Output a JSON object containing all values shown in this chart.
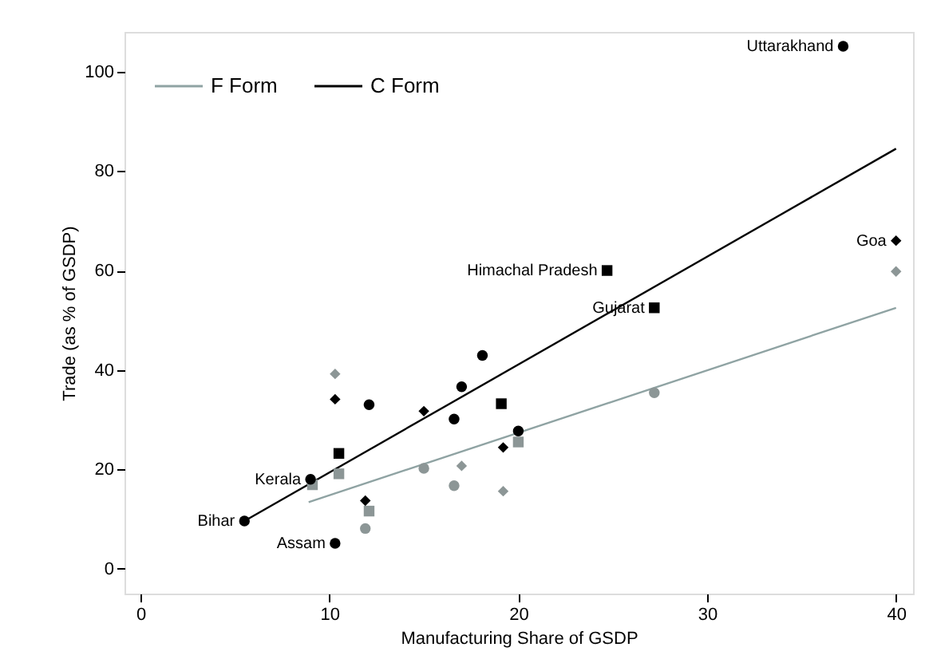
{
  "chart_data": {
    "type": "scatter",
    "xlabel": "Manufacturing Share of GSDP",
    "ylabel": "Trade (as % of GSDP)",
    "xlim": [
      -0.85,
      40.9
    ],
    "ylim": [
      -5,
      108
    ],
    "xticks": [
      0,
      10,
      20,
      30,
      40
    ],
    "yticks": [
      0,
      20,
      40,
      60,
      80,
      100
    ],
    "grid": false,
    "legend": "top left",
    "line_style": "solid",
    "series": [
      {
        "type": "line",
        "name": "F Form",
        "color": "#8fa3a3",
        "marker": "none",
        "x": [
          8.9,
          40
        ],
        "values": [
          13.4,
          52.5
        ]
      },
      {
        "type": "line",
        "name": "C Form",
        "color": "#000000",
        "marker": "none",
        "x": [
          5.5,
          40
        ],
        "values": [
          9.6,
          84.5
        ]
      },
      {
        "color": "#8c9696",
        "marker": "circle",
        "x": [
          11.9,
          15.0,
          27.2,
          16.6
        ],
        "values": [
          8.1,
          20.2,
          35.4,
          16.7
        ]
      },
      {
        "color": "#8c9696",
        "marker": "diamond",
        "x": [
          10.3,
          40.0,
          17.0,
          19.2
        ],
        "values": [
          39.2,
          59.8,
          20.7,
          15.6
        ]
      },
      {
        "color": "#8c9696",
        "marker": "square",
        "x": [
          10.5,
          12.1,
          9.1,
          20.0
        ],
        "values": [
          19.1,
          11.6,
          16.9,
          25.5
        ]
      },
      {
        "color": "#000000",
        "marker": "circle",
        "x": [
          5.5,
          9.0,
          10.3,
          12.1,
          37.2,
          18.1,
          17.0,
          16.6,
          20.0
        ],
        "values": [
          9.6,
          18.0,
          5.1,
          33.0,
          105.1,
          42.9,
          36.6,
          30.1,
          27.7
        ]
      },
      {
        "color": "#000000",
        "marker": "diamond",
        "x": [
          10.3,
          11.9,
          15.0,
          40.0,
          19.2
        ],
        "values": [
          34.1,
          13.7,
          31.7,
          66.0,
          24.4
        ]
      },
      {
        "color": "#000000",
        "marker": "square",
        "x": [
          10.5,
          24.7,
          27.2,
          19.1
        ],
        "values": [
          23.2,
          60.0,
          52.5,
          33.2
        ]
      }
    ],
    "annotations": [
      {
        "text": "Bihar",
        "x": 5.5,
        "y": 9.6
      },
      {
        "text": "Kerala",
        "x": 9.0,
        "y": 18.0
      },
      {
        "text": "Assam",
        "x": 10.3,
        "y": 5.1
      },
      {
        "text": "Uttarakhand",
        "x": 37.2,
        "y": 105.1
      },
      {
        "text": "Goa",
        "x": 40.0,
        "y": 66.0
      },
      {
        "text": "Himachal Pradesh",
        "x": 24.7,
        "y": 60.0
      },
      {
        "text": "Gujarat",
        "x": 27.2,
        "y": 52.5
      }
    ]
  }
}
